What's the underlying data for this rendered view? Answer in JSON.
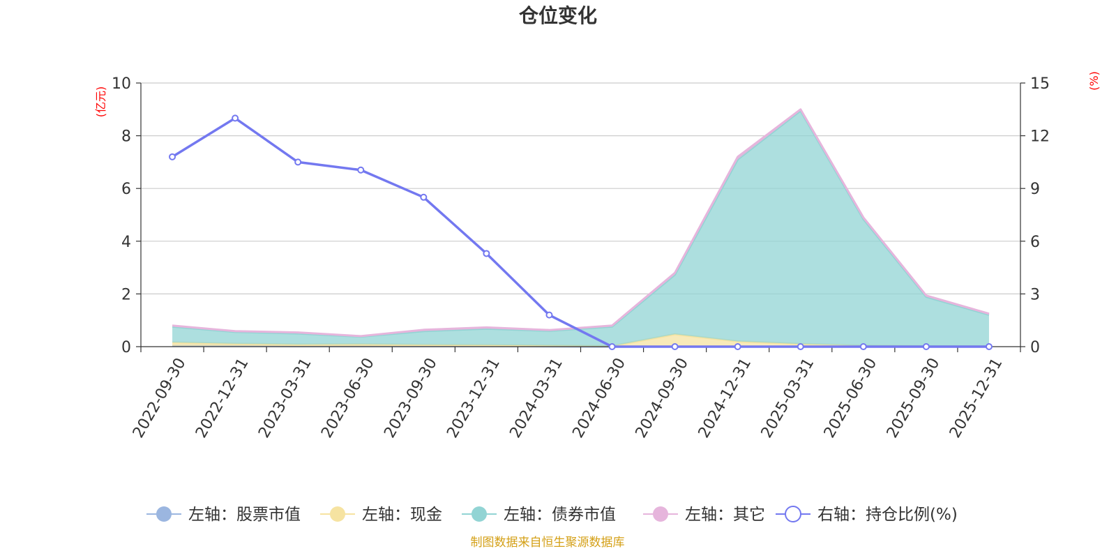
{
  "chart_data": {
    "type": "area",
    "title": "仓位变化",
    "left_unit": "(亿元)",
    "right_unit": "(%)",
    "source": "制图数据来自恒生聚源数据库",
    "categories": [
      "2022-09-30",
      "2022-12-31",
      "2023-03-31",
      "2023-06-30",
      "2023-09-30",
      "2023-12-31",
      "2024-03-31",
      "2024-06-30",
      "2024-09-30",
      "2024-12-31",
      "2025-03-31",
      "2025-06-30",
      "2025-09-30",
      "2025-12-31"
    ],
    "left_axis": {
      "min": 0,
      "max": 10,
      "ticks": [
        "0",
        "2",
        "4",
        "6",
        "8",
        "10"
      ]
    },
    "right_axis": {
      "min": 0,
      "max": 15,
      "ticks": [
        "0",
        "3",
        "6",
        "9",
        "12",
        "15"
      ]
    },
    "series": [
      {
        "name": "左轴：股票市值",
        "axis": "left",
        "stack": true,
        "color": "#9bb6e0",
        "values": [
          0.03,
          0.03,
          0.02,
          0.02,
          0.02,
          0.02,
          0.01,
          0.0,
          0.0,
          0.0,
          0.0,
          0.0,
          0.0,
          0.0
        ]
      },
      {
        "name": "左轴：现金",
        "axis": "left",
        "stack": true,
        "color": "#f6e3a1",
        "values": [
          0.13,
          0.08,
          0.06,
          0.07,
          0.05,
          0.04,
          0.03,
          0.02,
          0.47,
          0.2,
          0.1,
          0.04,
          0.02,
          0.02
        ]
      },
      {
        "name": "左轴：债券市值",
        "axis": "left",
        "stack": true,
        "color": "#92d4d4",
        "values": [
          0.6,
          0.45,
          0.42,
          0.29,
          0.52,
          0.62,
          0.56,
          0.74,
          2.26,
          6.9,
          8.85,
          4.8,
          1.87,
          1.19
        ]
      },
      {
        "name": "左轴：其它",
        "axis": "left",
        "stack": true,
        "color": "#e6b5dc",
        "values": [
          0.04,
          0.03,
          0.04,
          0.02,
          0.05,
          0.05,
          0.03,
          0.04,
          0.07,
          0.1,
          0.05,
          0.06,
          0.05,
          0.04
        ]
      },
      {
        "name": "右轴：持仓比例(%)",
        "axis": "right",
        "stack": false,
        "color": "#7378f0",
        "values": [
          10.8,
          13.0,
          10.5,
          10.05,
          8.5,
          5.3,
          1.8,
          0.0,
          0.0,
          0.0,
          0.0,
          0.0,
          0.0,
          0.0
        ]
      }
    ]
  }
}
